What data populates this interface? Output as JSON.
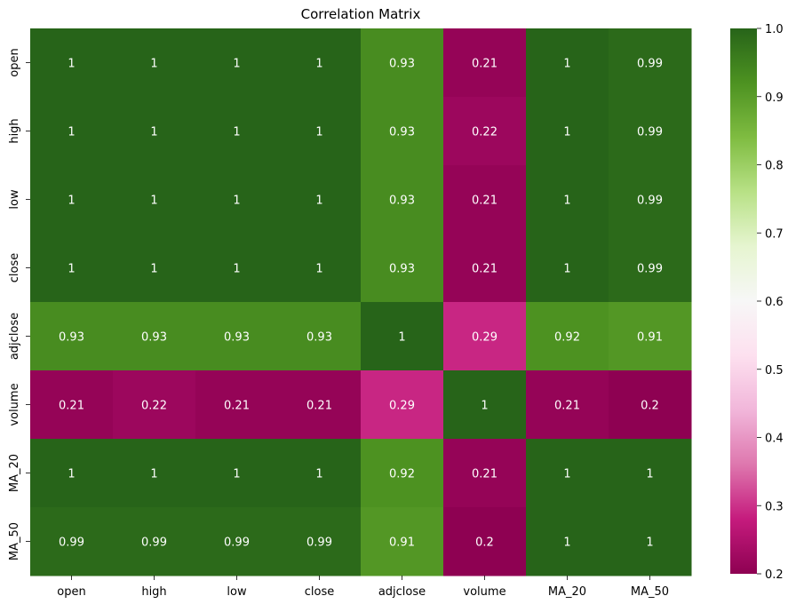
{
  "chart_data": {
    "type": "heatmap",
    "title": "Correlation Matrix",
    "xlabel": "",
    "ylabel": "",
    "x_labels": [
      "open",
      "high",
      "low",
      "close",
      "adjclose",
      "volume",
      "MA_20",
      "MA_50"
    ],
    "y_labels": [
      "open",
      "high",
      "low",
      "close",
      "adjclose",
      "volume",
      "MA_20",
      "MA_50"
    ],
    "values": [
      [
        1,
        1,
        1,
        1,
        0.93,
        0.21,
        1,
        0.99
      ],
      [
        1,
        1,
        1,
        1,
        0.93,
        0.22,
        1,
        0.99
      ],
      [
        1,
        1,
        1,
        1,
        0.93,
        0.21,
        1,
        0.99
      ],
      [
        1,
        1,
        1,
        1,
        0.93,
        0.21,
        1,
        0.99
      ],
      [
        0.93,
        0.93,
        0.93,
        0.93,
        1,
        0.29,
        0.92,
        0.91
      ],
      [
        0.21,
        0.22,
        0.21,
        0.21,
        0.29,
        1,
        0.21,
        0.2
      ],
      [
        1,
        1,
        1,
        1,
        0.92,
        0.21,
        1,
        1
      ],
      [
        0.99,
        0.99,
        0.99,
        0.99,
        0.91,
        0.2,
        1,
        1
      ]
    ],
    "annotations": [
      [
        "1",
        "1",
        "1",
        "1",
        "0.93",
        "0.21",
        "1",
        "0.99"
      ],
      [
        "1",
        "1",
        "1",
        "1",
        "0.93",
        "0.22",
        "1",
        "0.99"
      ],
      [
        "1",
        "1",
        "1",
        "1",
        "0.93",
        "0.21",
        "1",
        "0.99"
      ],
      [
        "1",
        "1",
        "1",
        "1",
        "0.93",
        "0.21",
        "1",
        "0.99"
      ],
      [
        "0.93",
        "0.93",
        "0.93",
        "0.93",
        "1",
        "0.29",
        "0.92",
        "0.91"
      ],
      [
        "0.21",
        "0.22",
        "0.21",
        "0.21",
        "0.29",
        "1",
        "0.21",
        "0.2"
      ],
      [
        "1",
        "1",
        "1",
        "1",
        "0.92",
        "0.21",
        "1",
        "1"
      ],
      [
        "0.99",
        "0.99",
        "0.99",
        "0.99",
        "0.91",
        "0.2",
        "1",
        "1"
      ]
    ],
    "colormap": "PiYG",
    "vmin": 0.2,
    "vmax": 1.0,
    "colorbar_ticks": [
      "0.2",
      "0.3",
      "0.4",
      "0.5",
      "0.6",
      "0.7",
      "0.8",
      "0.9",
      "1.0"
    ],
    "annotation_color": "#ffffff",
    "legend_placement": "right"
  }
}
